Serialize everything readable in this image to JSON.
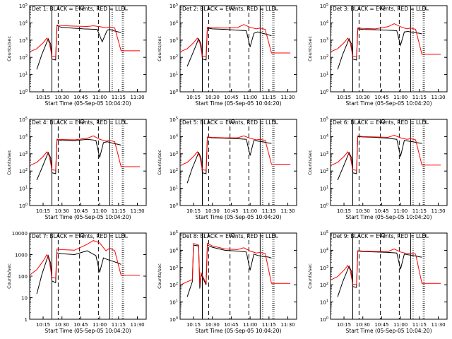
{
  "figure": {
    "xlabel": "Start Time (05-Sep-05 10:04:20)",
    "ylabel": "Counts/sec",
    "x_ticks": [
      "10:15",
      "10:30",
      "10:45",
      "11:00",
      "11:15",
      "11:30"
    ],
    "x_tick_minutes": [
      15,
      30,
      45,
      60,
      75,
      90
    ],
    "x_range_minutes": [
      4.3,
      97
    ],
    "colors": {
      "events": "#000000",
      "lld": "#ff0000",
      "background": "#ffffff"
    }
  },
  "chart_data": [
    {
      "type": "line",
      "title": "Det 1: BLACK = Events, RED = LLD",
      "ylabel": "Counts/sec",
      "xlabel": "Start Time (05-Sep-05 10:04:20)",
      "ylim_exp": [
        0,
        5
      ],
      "ytick_labels": [
        "10^0",
        "10^1",
        "10^2",
        "10^3",
        "10^4",
        "10^5"
      ],
      "ylog": true,
      "series": [
        {
          "name": "Events",
          "color": "#000000",
          "x": [
            10,
            14,
            17,
            19,
            21,
            22,
            25,
            26,
            28,
            30,
            38,
            47,
            58,
            62,
            66,
            68,
            71,
            75,
            77
          ],
          "y": [
            20,
            150,
            500,
            1200,
            600,
            80,
            70,
            7000,
            6000,
            5500,
            5000,
            4500,
            4200,
            800,
            3800,
            4200,
            3500,
            3000,
            2800
          ]
        },
        {
          "name": "LLD",
          "color": "#ff0000",
          "x": [
            5,
            10,
            15,
            18,
            20,
            22,
            25,
            26,
            30,
            40,
            50,
            55,
            60,
            65,
            68,
            72,
            77,
            85,
            92
          ],
          "y": [
            220,
            320,
            700,
            1300,
            700,
            120,
            110,
            7500,
            7000,
            6500,
            6200,
            6800,
            6000,
            5200,
            5800,
            5000,
            240,
            240,
            240
          ]
        }
      ]
    },
    {
      "type": "line",
      "title": "Det 2: BLACK = Events, RED = LLD",
      "ylabel": "Counts/sec",
      "xlabel": "Start Time (05-Sep-05 10:04:20)",
      "ylim_exp": [
        0,
        5
      ],
      "ytick_labels": [
        "10^0",
        "10^1",
        "10^2",
        "10^3",
        "10^4",
        "10^5"
      ],
      "ylog": true,
      "series": [
        {
          "name": "Events",
          "color": "#000000",
          "x": [
            10,
            14,
            17,
            19,
            21,
            22,
            25,
            26,
            30,
            40,
            50,
            57,
            60,
            63,
            66,
            70,
            75,
            77
          ],
          "y": [
            30,
            150,
            500,
            1200,
            600,
            80,
            70,
            5000,
            4500,
            4200,
            3800,
            3500,
            400,
            2500,
            3000,
            2500,
            2000,
            1800
          ]
        },
        {
          "name": "LLD",
          "color": "#ff0000",
          "x": [
            5,
            10,
            15,
            18,
            20,
            22,
            25,
            26,
            30,
            40,
            50,
            55,
            60,
            65,
            68,
            72,
            77,
            85,
            92
          ],
          "y": [
            220,
            320,
            700,
            1300,
            700,
            120,
            110,
            5500,
            5200,
            5000,
            5300,
            8000,
            5500,
            4500,
            5000,
            4200,
            180,
            180,
            180
          ]
        }
      ]
    },
    {
      "type": "line",
      "title": "Det 3: BLACK = Events, RED = LLD",
      "ylabel": "Counts/sec",
      "xlabel": "Start Time (05-Sep-05 10:04:20)",
      "ylim_exp": [
        0,
        5
      ],
      "ytick_labels": [
        "10^0",
        "10^1",
        "10^2",
        "10^3",
        "10^4",
        "10^5"
      ],
      "ylog": true,
      "series": [
        {
          "name": "Events",
          "color": "#000000",
          "x": [
            10,
            14,
            17,
            19,
            21,
            22,
            25,
            26,
            30,
            40,
            50,
            57,
            60,
            63,
            66,
            70,
            75,
            77
          ],
          "y": [
            20,
            150,
            500,
            1200,
            600,
            80,
            70,
            4500,
            4200,
            4000,
            3800,
            3500,
            500,
            3000,
            3200,
            2800,
            2500,
            2300
          ]
        },
        {
          "name": "LLD",
          "color": "#ff0000",
          "x": [
            5,
            10,
            15,
            18,
            20,
            22,
            25,
            26,
            30,
            40,
            50,
            55,
            60,
            65,
            68,
            72,
            77,
            85,
            92
          ],
          "y": [
            220,
            320,
            700,
            1300,
            700,
            120,
            110,
            5000,
            4800,
            4500,
            6000,
            9000,
            6000,
            4500,
            5000,
            4200,
            150,
            150,
            150
          ]
        }
      ]
    },
    {
      "type": "line",
      "title": "Det 4: BLACK = Events, RED = LLD",
      "ylabel": "Counts/sec",
      "xlabel": "Start Time (05-Sep-05 10:04:20)",
      "ylim_exp": [
        0,
        5
      ],
      "ytick_labels": [
        "10^0",
        "10^1",
        "10^2",
        "10^3",
        "10^4",
        "10^5"
      ],
      "ylog": true,
      "series": [
        {
          "name": "Events",
          "color": "#000000",
          "x": [
            10,
            14,
            17,
            19,
            21,
            22,
            25,
            26,
            30,
            40,
            50,
            57,
            60,
            63,
            66,
            70,
            75,
            77
          ],
          "y": [
            30,
            150,
            500,
            1200,
            600,
            80,
            70,
            6500,
            6000,
            5800,
            7000,
            6000,
            600,
            4500,
            5000,
            4200,
            3500,
            3200
          ]
        },
        {
          "name": "LLD",
          "color": "#ff0000",
          "x": [
            5,
            10,
            15,
            18,
            20,
            22,
            25,
            26,
            30,
            40,
            50,
            55,
            60,
            65,
            68,
            72,
            77,
            85,
            92
          ],
          "y": [
            220,
            320,
            700,
            1300,
            700,
            120,
            110,
            7000,
            6800,
            6500,
            8000,
            11000,
            7000,
            5500,
            6000,
            5000,
            180,
            180,
            180
          ]
        }
      ]
    },
    {
      "type": "line",
      "title": "Det 5: BLACK = Events, RED = LLD",
      "ylabel": "Counts/sec",
      "xlabel": "Start Time (05-Sep-05 10:04:20)",
      "ylim_exp": [
        0,
        5
      ],
      "ytick_labels": [
        "10^0",
        "10^1",
        "10^2",
        "10^3",
        "10^4",
        "10^5"
      ],
      "ylog": true,
      "series": [
        {
          "name": "Events",
          "color": "#000000",
          "x": [
            10,
            14,
            17,
            19,
            21,
            22,
            25,
            26,
            30,
            40,
            50,
            57,
            60,
            63,
            66,
            70,
            75,
            77
          ],
          "y": [
            20,
            150,
            500,
            1200,
            600,
            80,
            70,
            9000,
            8500,
            8000,
            7500,
            7000,
            800,
            6000,
            5500,
            5000,
            4200,
            4000
          ]
        },
        {
          "name": "LLD",
          "color": "#ff0000",
          "x": [
            5,
            10,
            15,
            18,
            20,
            22,
            25,
            26,
            30,
            40,
            50,
            55,
            60,
            65,
            68,
            72,
            77,
            85,
            92
          ],
          "y": [
            220,
            320,
            700,
            1300,
            700,
            120,
            110,
            9500,
            9000,
            8500,
            8500,
            11000,
            8000,
            6500,
            7000,
            6000,
            250,
            250,
            250
          ]
        }
      ]
    },
    {
      "type": "line",
      "title": "Det 6: BLACK = Events, RED = LLD",
      "ylabel": "Counts/sec",
      "xlabel": "Start Time (05-Sep-05 10:04:20)",
      "ylim_exp": [
        0,
        5
      ],
      "ytick_labels": [
        "10^0",
        "10^1",
        "10^2",
        "10^3",
        "10^4",
        "10^5"
      ],
      "ylog": true,
      "series": [
        {
          "name": "Events",
          "color": "#000000",
          "x": [
            10,
            14,
            17,
            19,
            21,
            22,
            25,
            26,
            30,
            40,
            50,
            57,
            60,
            63,
            66,
            70,
            75,
            77
          ],
          "y": [
            30,
            150,
            500,
            1200,
            600,
            80,
            70,
            10000,
            9500,
            9000,
            8000,
            7000,
            700,
            6000,
            5500,
            5000,
            4200,
            4000
          ]
        },
        {
          "name": "LLD",
          "color": "#ff0000",
          "x": [
            5,
            10,
            15,
            18,
            20,
            22,
            25,
            26,
            30,
            40,
            50,
            55,
            60,
            65,
            68,
            72,
            77,
            85,
            92
          ],
          "y": [
            220,
            320,
            700,
            1300,
            700,
            120,
            110,
            11000,
            10000,
            9500,
            9000,
            12000,
            8500,
            7000,
            7500,
            6500,
            220,
            220,
            220
          ]
        }
      ]
    },
    {
      "type": "line",
      "title": "Det 7: BLACK = Events, RED = LLD",
      "ylabel": "Counts/sec",
      "xlabel": "Start Time (05-Sep-05 10:04:20)",
      "ylim_exp": [
        0,
        4
      ],
      "ytick_labels": [
        "1",
        "10",
        "100",
        "1000",
        "10000"
      ],
      "ylog": true,
      "series": [
        {
          "name": "Events",
          "color": "#000000",
          "x": [
            10,
            14,
            17,
            19,
            21,
            22,
            25,
            26,
            30,
            40,
            50,
            57,
            60,
            63,
            66,
            70,
            75,
            77
          ],
          "y": [
            15,
            120,
            400,
            900,
            400,
            60,
            50,
            1200,
            1100,
            1000,
            1500,
            900,
            150,
            700,
            600,
            500,
            400,
            350
          ]
        },
        {
          "name": "LLD",
          "color": "#ff0000",
          "x": [
            5,
            10,
            15,
            18,
            20,
            22,
            25,
            26,
            30,
            40,
            50,
            55,
            60,
            65,
            68,
            72,
            77,
            85,
            92
          ],
          "y": [
            120,
            200,
            500,
            1000,
            500,
            90,
            80,
            1800,
            1700,
            1600,
            3000,
            4500,
            3500,
            1500,
            2000,
            1500,
            110,
            110,
            110
          ]
        }
      ]
    },
    {
      "type": "line",
      "title": "Det 8: BLACK = Events, RED = LLD",
      "ylabel": "Counts/sec",
      "xlabel": "Start Time (05-Sep-05 10:04:20)",
      "ylim_exp": [
        0,
        5
      ],
      "ytick_labels": [
        "10^0",
        "10^1",
        "10^2",
        "10^3",
        "10^4",
        "10^5"
      ],
      "ylog": true,
      "series": [
        {
          "name": "Events",
          "color": "#000000",
          "x": [
            10,
            14,
            15,
            19,
            20,
            21,
            25,
            26,
            30,
            40,
            50,
            57,
            60,
            63,
            66,
            70,
            75,
            77
          ],
          "y": [
            20,
            150,
            20000,
            18000,
            60,
            400,
            100,
            20000,
            15000,
            10000,
            9000,
            8000,
            700,
            6000,
            5000,
            4500,
            4000,
            3500
          ]
        },
        {
          "name": "LLD",
          "color": "#ff0000",
          "x": [
            5,
            10,
            14,
            15,
            19,
            20,
            21,
            25,
            26,
            30,
            40,
            50,
            55,
            60,
            65,
            68,
            72,
            77,
            85,
            92
          ],
          "y": [
            100,
            150,
            200,
            25000,
            20000,
            100,
            500,
            120,
            25000,
            18000,
            12000,
            11000,
            14000,
            9000,
            7000,
            7500,
            6500,
            120,
            120,
            120
          ]
        }
      ]
    },
    {
      "type": "line",
      "title": "Det 9: BLACK = Events, RED = LLD",
      "ylabel": "Counts/sec",
      "xlabel": "Start Time (05-Sep-05 10:04:20)",
      "ylim_exp": [
        0,
        5
      ],
      "ytick_labels": [
        "10^0",
        "10^1",
        "10^2",
        "10^3",
        "10^4",
        "10^5"
      ],
      "ylog": true,
      "series": [
        {
          "name": "Events",
          "color": "#000000",
          "x": [
            10,
            14,
            17,
            19,
            21,
            22,
            25,
            26,
            30,
            40,
            50,
            57,
            60,
            63,
            66,
            70,
            75,
            77
          ],
          "y": [
            20,
            150,
            500,
            1200,
            600,
            80,
            70,
            9000,
            8500,
            8000,
            7500,
            7000,
            800,
            6000,
            5500,
            5000,
            4200,
            4000
          ]
        },
        {
          "name": "LLD",
          "color": "#ff0000",
          "x": [
            5,
            10,
            15,
            18,
            20,
            22,
            25,
            26,
            30,
            40,
            50,
            55,
            60,
            65,
            68,
            72,
            77,
            85,
            92
          ],
          "y": [
            200,
            300,
            700,
            1300,
            700,
            110,
            100,
            9500,
            9000,
            8500,
            8500,
            12000,
            8000,
            6500,
            7000,
            6000,
            120,
            120,
            120
          ]
        }
      ]
    }
  ]
}
